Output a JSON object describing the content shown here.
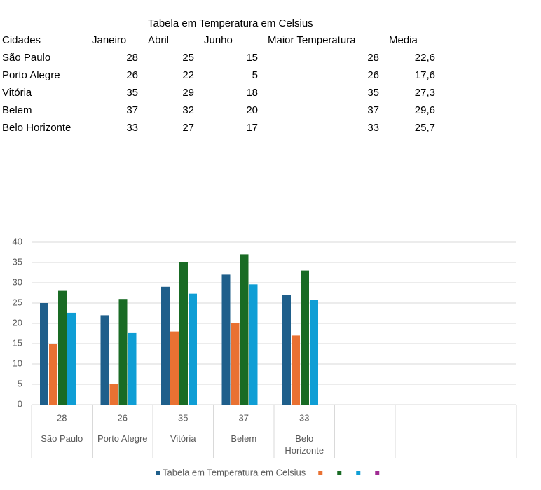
{
  "table": {
    "title": "Tabela em Temperatura em Celsius",
    "headers": [
      "Cidades",
      "Janeiro",
      "Abril",
      "Junho",
      "Maior Temperatura",
      "Media"
    ],
    "rows": [
      [
        "São Paulo",
        "28",
        "25",
        "15",
        "28",
        "22,6"
      ],
      [
        "Porto Alegre",
        "26",
        "22",
        "5",
        "26",
        "17,6"
      ],
      [
        "Vitória",
        "35",
        "29",
        "18",
        "35",
        "27,3"
      ],
      [
        "Belem",
        "37",
        "32",
        "20",
        "37",
        "29,6"
      ],
      [
        "Belo Horizonte",
        "33",
        "27",
        "17",
        "33",
        "25,7"
      ]
    ]
  },
  "chart_data": {
    "type": "bar",
    "categories": [
      "São Paulo",
      "Porto Alegre",
      "Vitória",
      "Belem",
      "Belo Horizonte",
      null,
      null,
      null
    ],
    "category_top_labels": [
      28,
      26,
      35,
      37,
      33,
      null,
      null,
      null
    ],
    "series": [
      {
        "name": "Tabela em Temperatura em Celsius",
        "color": "#1f5f8b",
        "values": [
          25,
          22,
          29,
          32,
          27,
          null,
          null,
          null
        ]
      },
      {
        "name": null,
        "color": "#e97132",
        "values": [
          15,
          5,
          18,
          20,
          17,
          null,
          null,
          null
        ]
      },
      {
        "name": null,
        "color": "#196b24",
        "values": [
          28,
          26,
          35,
          37,
          33,
          null,
          null,
          null
        ]
      },
      {
        "name": null,
        "color": "#0f9ed5",
        "values": [
          22.6,
          17.6,
          27.3,
          29.6,
          25.7,
          null,
          null,
          null
        ]
      },
      {
        "name": null,
        "color": "#a02b93",
        "values": [
          null,
          null,
          null,
          null,
          null,
          null,
          null,
          null
        ]
      }
    ],
    "ylim": [
      0,
      40
    ],
    "yticks": [
      0,
      5,
      10,
      15,
      20,
      25,
      30,
      35,
      40
    ],
    "grid": true,
    "legend": "bottom"
  }
}
